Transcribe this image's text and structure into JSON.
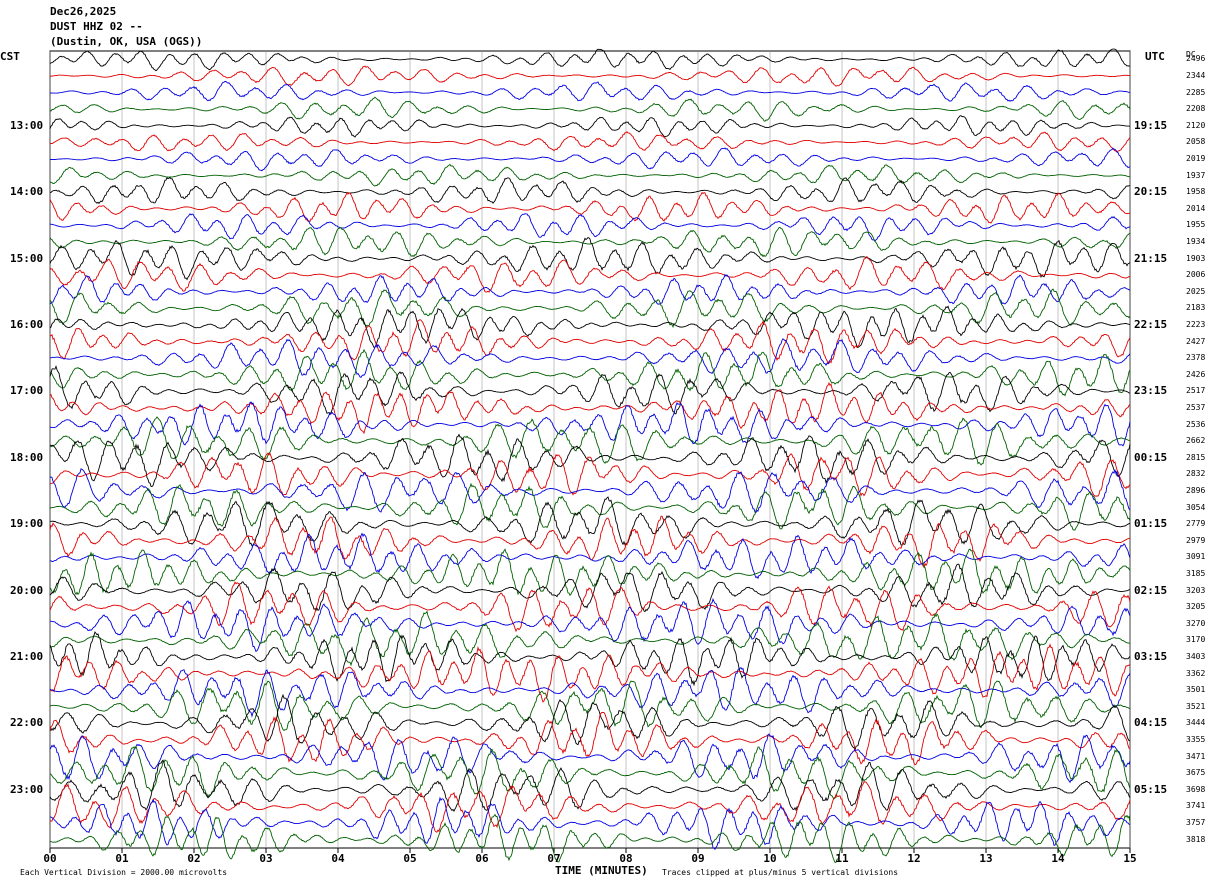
{
  "header": {
    "date": "Dec26,2025",
    "station": "DUST HHZ 02 --",
    "location": "(Dustin, OK, USA  (OGS))"
  },
  "left_tz": "CST",
  "right_tz": "UTC",
  "dc_label": "DC",
  "footer": {
    "scale": "Each Vertical Division = 2000.00 microvolts",
    "xlabel": "TIME (MINUTES)",
    "clip": "Traces clipped at plus/minus 5 vertical divisions"
  },
  "colors": {
    "trace_cycle": [
      "#000000",
      "#e00000",
      "#0000e0",
      "#006000"
    ],
    "grid": "#888888"
  },
  "chart_data": {
    "type": "line",
    "title": "",
    "xlabel": "TIME (MINUTES)",
    "ylabel": "",
    "xlim": [
      0,
      15
    ],
    "x_ticks": [
      "00",
      "01",
      "02",
      "03",
      "04",
      "05",
      "06",
      "07",
      "08",
      "09",
      "10",
      "11",
      "12",
      "13",
      "14",
      "15"
    ],
    "left_time_labels": [
      "13:00",
      "14:00",
      "15:00",
      "16:00",
      "17:00",
      "18:00",
      "19:00",
      "20:00",
      "21:00",
      "22:00",
      "23:00"
    ],
    "right_time_labels": [
      "19:15",
      "20:15",
      "21:15",
      "22:15",
      "23:15",
      "00:15",
      "01:15",
      "02:15",
      "03:15",
      "04:15",
      "05:15"
    ],
    "traces": [
      {
        "dc": "2496",
        "amp": 0.3
      },
      {
        "dc": "2344",
        "amp": 0.3
      },
      {
        "dc": "2285",
        "amp": 0.3
      },
      {
        "dc": "2208",
        "amp": 0.32
      },
      {
        "dc": "2120",
        "amp": 0.3
      },
      {
        "dc": "2058",
        "amp": 0.28
      },
      {
        "dc": "2019",
        "amp": 0.3
      },
      {
        "dc": "1937",
        "amp": 0.3
      },
      {
        "dc": "1958",
        "amp": 0.4
      },
      {
        "dc": "2014",
        "amp": 0.45
      },
      {
        "dc": "1955",
        "amp": 0.4
      },
      {
        "dc": "1934",
        "amp": 0.45
      },
      {
        "dc": "1903",
        "amp": 0.55
      },
      {
        "dc": "2006",
        "amp": 0.5
      },
      {
        "dc": "2025",
        "amp": 0.45
      },
      {
        "dc": "2183",
        "amp": 0.55
      },
      {
        "dc": "2223",
        "amp": 0.6
      },
      {
        "dc": "2427",
        "amp": 0.6
      },
      {
        "dc": "2378",
        "amp": 0.55
      },
      {
        "dc": "2426",
        "amp": 0.65
      },
      {
        "dc": "2517",
        "amp": 0.65
      },
      {
        "dc": "2537",
        "amp": 0.65
      },
      {
        "dc": "2536",
        "amp": 0.65
      },
      {
        "dc": "2662",
        "amp": 0.7
      },
      {
        "dc": "2815",
        "amp": 0.75
      },
      {
        "dc": "2832",
        "amp": 0.7
      },
      {
        "dc": "2896",
        "amp": 0.65
      },
      {
        "dc": "3054",
        "amp": 0.7
      },
      {
        "dc": "2779",
        "amp": 0.75
      },
      {
        "dc": "2979",
        "amp": 0.7
      },
      {
        "dc": "3091",
        "amp": 0.65
      },
      {
        "dc": "3185",
        "amp": 0.7
      },
      {
        "dc": "3203",
        "amp": 0.7
      },
      {
        "dc": "3205",
        "amp": 0.75
      },
      {
        "dc": "3270",
        "amp": 0.7
      },
      {
        "dc": "3170",
        "amp": 0.75
      },
      {
        "dc": "3403",
        "amp": 0.75
      },
      {
        "dc": "3362",
        "amp": 0.75
      },
      {
        "dc": "3501",
        "amp": 0.7
      },
      {
        "dc": "3521",
        "amp": 0.75
      },
      {
        "dc": "3444",
        "amp": 0.75
      },
      {
        "dc": "3355",
        "amp": 0.75
      },
      {
        "dc": "3471",
        "amp": 0.7
      },
      {
        "dc": "3675",
        "amp": 0.75
      },
      {
        "dc": "3698",
        "amp": 0.75
      },
      {
        "dc": "3741",
        "amp": 0.7
      },
      {
        "dc": "3757",
        "amp": 0.7
      },
      {
        "dc": "3818",
        "amp": 0.7
      }
    ]
  }
}
